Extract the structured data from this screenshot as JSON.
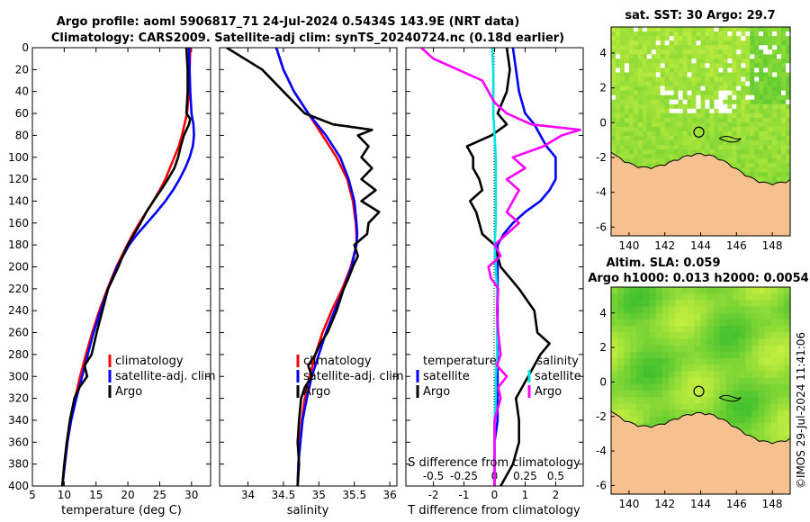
{
  "figure": {
    "title_line1": "Argo profile: aoml 5906817_71 24-Jul-2024 0.5434S 143.9E (NRT data)",
    "title_line2": "Climatology: CARS2009. Satellite-adj clim: synTS_20240724.nc (0.18d earlier)",
    "credit": "©IMOS 29-Jul-2024 11:41:06"
  },
  "colors": {
    "climatology": "#ff0000",
    "satellite": "#0000ff",
    "argo": "#000000",
    "T_sat": "#00e5e5",
    "S_diff": "#ff00ff",
    "land": "#f6c08f",
    "ocean_a": "#d9f542",
    "ocean_b": "#2ab82a",
    "cloud": "#ffffff"
  },
  "chart_data": [
    {
      "id": "temperature",
      "type": "line",
      "xlabel": "temperature (deg C)",
      "ylabel": "",
      "xlim": [
        5,
        33
      ],
      "ylim": [
        400,
        0
      ],
      "xticks": [
        5,
        10,
        15,
        20,
        25,
        30
      ],
      "yticks": [
        0,
        20,
        40,
        60,
        80,
        100,
        120,
        140,
        160,
        180,
        200,
        220,
        240,
        260,
        280,
        300,
        320,
        340,
        360,
        380,
        400
      ],
      "legend": [
        "climatology",
        "satellite-adj. clim",
        "Argo"
      ],
      "series": [
        {
          "name": "climatology",
          "color": "red",
          "depth": [
            0,
            20,
            40,
            60,
            70,
            80,
            90,
            100,
            110,
            120,
            130,
            140,
            150,
            160,
            170,
            180,
            200,
            220,
            240,
            260,
            280,
            300,
            320,
            340,
            360,
            380,
            400
          ],
          "values": [
            29.8,
            29.7,
            29.6,
            29.3,
            28.9,
            28.5,
            28.0,
            27.3,
            26.6,
            25.9,
            25.0,
            24.0,
            22.9,
            21.8,
            20.8,
            19.9,
            18.2,
            16.8,
            15.5,
            14.4,
            13.4,
            12.5,
            11.7,
            11.0,
            10.5,
            10.1,
            9.7
          ]
        },
        {
          "name": "satellite-adj. clim",
          "color": "blue",
          "depth": [
            0,
            20,
            40,
            60,
            70,
            80,
            90,
            100,
            110,
            120,
            130,
            140,
            150,
            160,
            170,
            180,
            200,
            220,
            240,
            260,
            280,
            300,
            320,
            340,
            360,
            380,
            400
          ],
          "values": [
            29.6,
            29.7,
            29.8,
            30.0,
            30.3,
            30.4,
            30.2,
            29.7,
            29.0,
            28.1,
            27.1,
            25.9,
            24.5,
            23.0,
            21.5,
            20.2,
            18.3,
            16.9,
            15.7,
            14.6,
            13.7,
            12.8,
            11.9,
            11.1,
            10.5,
            10.1,
            9.7
          ]
        },
        {
          "name": "Argo",
          "color": "black",
          "depth": [
            0,
            20,
            40,
            60,
            65,
            70,
            80,
            90,
            100,
            110,
            120,
            130,
            140,
            150,
            160,
            170,
            180,
            190,
            200,
            210,
            220,
            240,
            260,
            280,
            290,
            300,
            310,
            320,
            340,
            360,
            380,
            400
          ],
          "values": [
            29.2,
            29.4,
            29.4,
            29.2,
            29.8,
            29.6,
            28.8,
            28.3,
            27.9,
            27.3,
            26.3,
            25.2,
            24.0,
            22.9,
            22.0,
            21.0,
            20.0,
            19.2,
            18.5,
            17.7,
            16.9,
            16.0,
            15.1,
            14.3,
            13.2,
            13.6,
            12.4,
            11.6,
            10.9,
            10.4,
            10.0,
            9.7
          ]
        }
      ]
    },
    {
      "id": "salinity",
      "type": "line",
      "xlabel": "salinity",
      "ylabel": "",
      "xlim": [
        33.6,
        36.1
      ],
      "ylim": [
        400,
        0
      ],
      "xticks": [
        34,
        34.5,
        35,
        35.5,
        36
      ],
      "yticks": [
        0,
        20,
        40,
        60,
        80,
        100,
        120,
        140,
        160,
        180,
        200,
        220,
        240,
        260,
        280,
        300,
        320,
        340,
        360,
        380,
        400
      ],
      "legend": [
        "climatology",
        "satellite-adj. clim",
        "Argo"
      ],
      "series": [
        {
          "name": "climatology",
          "color": "red",
          "depth": [
            0,
            20,
            40,
            60,
            80,
            100,
            120,
            140,
            160,
            170,
            180,
            200,
            220,
            240,
            260,
            280,
            300,
            320,
            340,
            360,
            380,
            400
          ],
          "values": [
            34.4,
            34.5,
            34.65,
            34.85,
            35.05,
            35.25,
            35.4,
            35.48,
            35.52,
            35.53,
            35.53,
            35.45,
            35.33,
            35.18,
            35.05,
            34.95,
            34.87,
            34.8,
            34.76,
            34.73,
            34.71,
            34.7
          ]
        },
        {
          "name": "satellite-adj. clim",
          "color": "blue",
          "depth": [
            0,
            20,
            40,
            60,
            80,
            100,
            120,
            140,
            160,
            170,
            180,
            200,
            220,
            240,
            260,
            280,
            300,
            320,
            340,
            360,
            380,
            400
          ],
          "values": [
            34.4,
            34.5,
            34.65,
            34.85,
            35.1,
            35.3,
            35.42,
            35.5,
            35.53,
            35.54,
            35.53,
            35.46,
            35.35,
            35.22,
            35.1,
            35.0,
            34.9,
            34.83,
            34.77,
            34.74,
            34.71,
            34.7
          ]
        },
        {
          "name": "Argo",
          "color": "black",
          "depth": [
            0,
            10,
            20,
            40,
            60,
            70,
            75,
            80,
            90,
            100,
            110,
            120,
            130,
            140,
            150,
            160,
            170,
            180,
            190,
            200,
            210,
            220,
            240,
            260,
            270,
            280,
            290,
            300,
            310,
            320,
            340,
            360,
            380,
            400
          ],
          "values": [
            33.7,
            33.95,
            34.2,
            34.5,
            34.8,
            35.2,
            35.75,
            35.55,
            35.7,
            35.6,
            35.75,
            35.6,
            35.8,
            35.6,
            35.85,
            35.7,
            35.68,
            35.5,
            35.55,
            35.48,
            35.42,
            35.35,
            35.25,
            35.12,
            35.02,
            34.95,
            34.85,
            34.9,
            34.8,
            34.75,
            34.72,
            34.7,
            34.72,
            34.7
          ]
        }
      ]
    },
    {
      "id": "difference",
      "type": "line",
      "xlabel": "T difference from climatology",
      "top_axis_label": "S difference from climatology",
      "xlim": [
        -2.9,
        2.9
      ],
      "ylim": [
        400,
        0
      ],
      "xticks": [
        -2,
        -1,
        0,
        1,
        2
      ],
      "top_xticks": [
        -0.5,
        -0.25,
        0,
        0.25,
        0.5
      ],
      "top_xtick_labels": [
        "-0.5",
        "-0.25",
        "0",
        "0.25",
        "0.5"
      ],
      "yticks": [
        0,
        20,
        40,
        60,
        80,
        100,
        120,
        140,
        160,
        180,
        200,
        220,
        240,
        260,
        280,
        300,
        320,
        340,
        360,
        380,
        400
      ],
      "legend_left_title": "temperature",
      "legend_right_title": "salinity",
      "legend": [
        "satellite",
        "Argo",
        "satellite",
        "Argo"
      ],
      "series": [
        {
          "name": "T satellite",
          "color": "blue",
          "depth": [
            0,
            20,
            40,
            60,
            70,
            80,
            90,
            100,
            110,
            120,
            130,
            140,
            150,
            160,
            170,
            180,
            200,
            220,
            240,
            260,
            280,
            300,
            320,
            340,
            360,
            380,
            400
          ],
          "values": [
            0.6,
            0.7,
            0.8,
            1.0,
            1.3,
            1.5,
            1.7,
            2.0,
            2.0,
            2.0,
            1.8,
            1.5,
            1.0,
            0.6,
            0.3,
            0.1,
            0.1,
            0.1,
            0.1,
            0.1,
            0.1,
            0.1,
            0.1,
            0.1,
            0.0,
            0.0,
            0.0
          ]
        },
        {
          "name": "T Argo",
          "color": "black",
          "depth": [
            0,
            20,
            40,
            60,
            70,
            80,
            90,
            100,
            110,
            120,
            130,
            140,
            150,
            160,
            170,
            180,
            190,
            200,
            210,
            220,
            240,
            260,
            270,
            280,
            290,
            300,
            310,
            320,
            340,
            360,
            380,
            400
          ],
          "values": [
            0.4,
            0.5,
            0.4,
            0.1,
            0.4,
            -0.1,
            -0.9,
            -0.7,
            -0.7,
            -0.5,
            -0.4,
            -0.8,
            -0.6,
            -0.5,
            -0.4,
            0.0,
            0.1,
            0.2,
            0.5,
            0.8,
            1.3,
            1.4,
            1.8,
            1.5,
            1.3,
            1.1,
            0.9,
            0.7,
            0.8,
            0.8,
            0.6,
            0.2
          ]
        },
        {
          "name": "S satellite",
          "color": "cyan",
          "depth": [
            0,
            20,
            40,
            60,
            80,
            100,
            120,
            140,
            160,
            180,
            200,
            220,
            240,
            260,
            280,
            300,
            320,
            340,
            360,
            380,
            400
          ],
          "values": [
            -0.02,
            -0.01,
            -0.01,
            -0.01,
            0.0,
            0.01,
            0.01,
            0.01,
            0.01,
            0.0,
            0.01,
            0.02,
            0.02,
            0.02,
            0.02,
            0.01,
            0.01,
            0.0,
            0.0,
            0.0,
            0.0
          ]
        },
        {
          "name": "S Argo",
          "color": "magenta",
          "depth": [
            0,
            10,
            20,
            30,
            40,
            50,
            60,
            70,
            75,
            80,
            90,
            100,
            110,
            120,
            130,
            140,
            150,
            160,
            170,
            180,
            190,
            200,
            210,
            220,
            240,
            260,
            280,
            290,
            300,
            310,
            320,
            340,
            360,
            380,
            400
          ],
          "values": [
            -0.6,
            -0.5,
            -0.3,
            -0.1,
            -0.05,
            0.0,
            0.1,
            0.3,
            0.7,
            0.55,
            0.4,
            0.15,
            0.25,
            0.1,
            0.2,
            0.15,
            0.1,
            0.2,
            0.1,
            0.0,
            0.05,
            -0.05,
            -0.03,
            0.03,
            0.02,
            0.03,
            0.05,
            0.02,
            0.1,
            0.03,
            0.05,
            0.0,
            0.0,
            0.0,
            0.0
          ]
        }
      ]
    },
    {
      "id": "sst_map",
      "type": "heatmap",
      "title": "sat. SST: 30 Argo: 29.7",
      "xticks": [
        140,
        142,
        144,
        146,
        148
      ],
      "yticks": [
        4,
        2,
        0,
        -2,
        -4,
        -6
      ],
      "xlim": [
        139,
        149
      ],
      "ylim": [
        -6.5,
        5.5
      ],
      "argo_position": [
        143.9,
        -0.54
      ]
    },
    {
      "id": "sla_map",
      "type": "heatmap",
      "title_line1": "Altim. SLA: 0.059",
      "title_line2": "Argo h1000: 0.013 h2000: 0.0054",
      "xticks": [
        140,
        142,
        144,
        146,
        148
      ],
      "yticks": [
        4,
        2,
        0,
        -2,
        -4,
        -6
      ],
      "xlim": [
        139,
        149
      ],
      "ylim": [
        -6.5,
        5.5
      ],
      "argo_position": [
        143.9,
        -0.54
      ]
    }
  ]
}
